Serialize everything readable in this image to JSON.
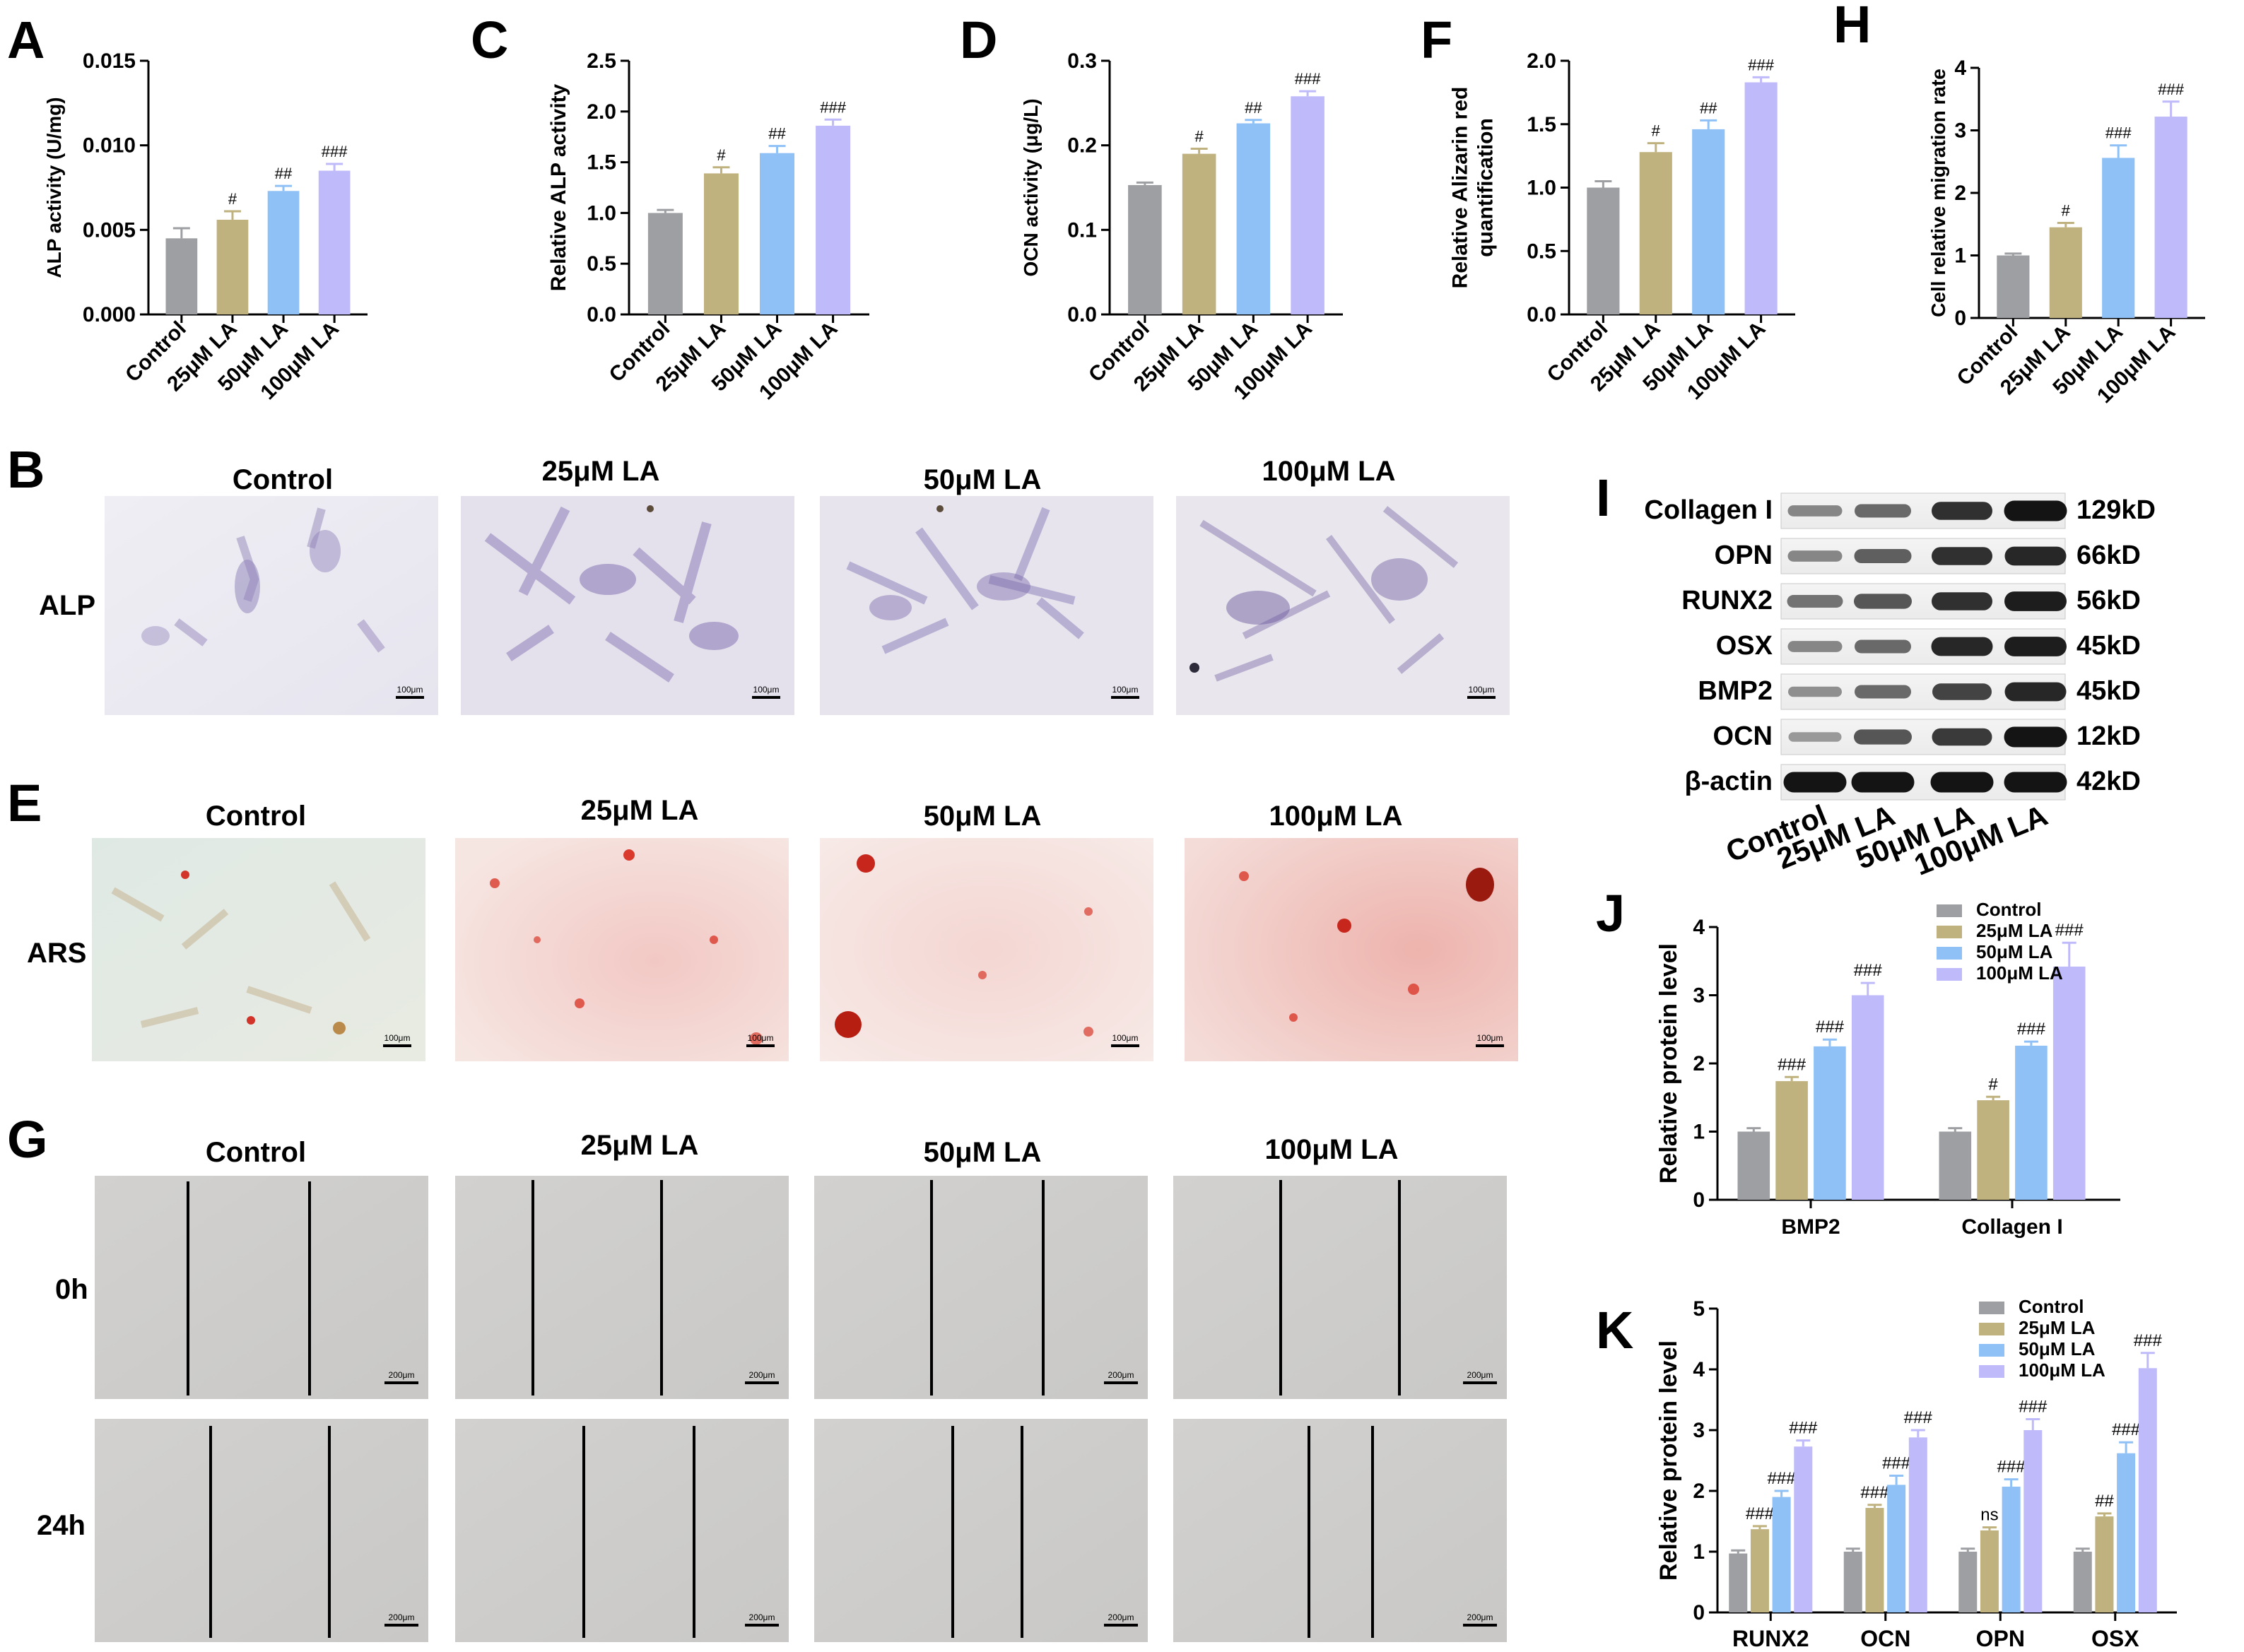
{
  "colors": [
    "#9e9fa3",
    "#bfb27e",
    "#8fc1f6",
    "#bfbafa"
  ],
  "panels": {
    "A": "A",
    "B": "B",
    "C": "C",
    "D": "D",
    "E": "E",
    "F": "F",
    "G": "G",
    "H": "H",
    "I": "I",
    "J": "J",
    "K": "K"
  },
  "chart_data": [
    {
      "id": "A",
      "type": "bar",
      "title": "",
      "ylabel": "ALP activity (U/mg)",
      "ylim": [
        0,
        0.015
      ],
      "yticks": [
        "0.000",
        "0.005",
        "0.010",
        "0.015"
      ],
      "categories": [
        "Control",
        "25μM LA",
        "50μM LA",
        "100μM LA"
      ],
      "values": [
        0.0045,
        0.0056,
        0.0073,
        0.0085
      ],
      "errors": [
        0.0006,
        0.0005,
        0.0003,
        0.0004
      ],
      "annotations": [
        "",
        "#",
        "##",
        "###"
      ]
    },
    {
      "id": "C",
      "type": "bar",
      "title": "",
      "ylabel": "Relative ALP activity",
      "ylim": [
        0,
        2.5
      ],
      "yticks": [
        "0.0",
        "0.5",
        "1.0",
        "1.5",
        "2.0",
        "2.5"
      ],
      "categories": [
        "Control",
        "25μM LA",
        "50μM LA",
        "100μM LA"
      ],
      "values": [
        1.0,
        1.39,
        1.59,
        1.86
      ],
      "errors": [
        0.03,
        0.06,
        0.07,
        0.06
      ],
      "annotations": [
        "",
        "#",
        "##",
        "###"
      ]
    },
    {
      "id": "D",
      "type": "bar",
      "title": "",
      "ylabel": "OCN activity (μg/L)",
      "ylim": [
        0,
        0.3
      ],
      "yticks": [
        "0.0",
        "0.1",
        "0.2",
        "0.3"
      ],
      "categories": [
        "Control",
        "25μM LA",
        "50μM LA",
        "100μM LA"
      ],
      "values": [
        0.153,
        0.19,
        0.226,
        0.258
      ],
      "errors": [
        0.003,
        0.006,
        0.004,
        0.006
      ],
      "annotations": [
        "",
        "#",
        "##",
        "###"
      ]
    },
    {
      "id": "F",
      "type": "bar",
      "title": "",
      "ylabel": "Relative Alizarin red\nquantification",
      "ylim": [
        0,
        2.0
      ],
      "yticks": [
        "0.0",
        "0.5",
        "1.0",
        "1.5",
        "2.0"
      ],
      "categories": [
        "Control",
        "25μM LA",
        "50μM LA",
        "100μM LA"
      ],
      "values": [
        1.0,
        1.28,
        1.46,
        1.83
      ],
      "errors": [
        0.05,
        0.07,
        0.07,
        0.04
      ],
      "annotations": [
        "",
        "#",
        "##",
        "###"
      ]
    },
    {
      "id": "H",
      "type": "bar",
      "title": "",
      "ylabel": "Cell relative migration rate",
      "ylim": [
        0,
        4
      ],
      "yticks": [
        "0",
        "1",
        "2",
        "3",
        "4"
      ],
      "categories": [
        "Control",
        "25μM LA",
        "50μM LA",
        "100μM LA"
      ],
      "values": [
        1.0,
        1.45,
        2.56,
        3.22
      ],
      "errors": [
        0.03,
        0.07,
        0.2,
        0.24
      ],
      "annotations": [
        "",
        "#",
        "###",
        "###"
      ]
    },
    {
      "id": "J",
      "type": "bar",
      "title": "",
      "ylabel": "Relative protein level",
      "ylim": [
        0,
        4
      ],
      "yticks": [
        "0",
        "1",
        "2",
        "3",
        "4"
      ],
      "categories": [
        "BMP2",
        "Collagen I"
      ],
      "legend": [
        "Control",
        "25μM LA",
        "50μM LA",
        "100μM LA"
      ],
      "series": [
        {
          "name": "Control",
          "values": [
            1.0,
            1.0
          ],
          "errors": [
            0.05,
            0.05
          ],
          "annotations": [
            "",
            ""
          ]
        },
        {
          "name": "25μM LA",
          "values": [
            1.74,
            1.46
          ],
          "errors": [
            0.06,
            0.05
          ],
          "annotations": [
            "###",
            "#"
          ]
        },
        {
          "name": "50μM LA",
          "values": [
            2.25,
            2.26
          ],
          "errors": [
            0.1,
            0.06
          ],
          "annotations": [
            "###",
            "###"
          ]
        },
        {
          "name": "100μM LA",
          "values": [
            3.0,
            3.42
          ],
          "errors": [
            0.18,
            0.35
          ],
          "annotations": [
            "###",
            "###"
          ]
        }
      ]
    },
    {
      "id": "K",
      "type": "bar",
      "title": "",
      "ylabel": "Relative protein level",
      "ylim": [
        0,
        5
      ],
      "yticks": [
        "0",
        "1",
        "2",
        "3",
        "4",
        "5"
      ],
      "categories": [
        "RUNX2",
        "OCN",
        "OPN",
        "OSX"
      ],
      "legend": [
        "Control",
        "25μM LA",
        "50μM LA",
        "100μM LA"
      ],
      "series": [
        {
          "name": "Control",
          "values": [
            0.97,
            1.0,
            1.0,
            1.0
          ],
          "errors": [
            0.05,
            0.05,
            0.05,
            0.05
          ],
          "annotations": [
            "",
            "",
            "",
            ""
          ]
        },
        {
          "name": "25μM LA",
          "values": [
            1.37,
            1.72,
            1.35,
            1.58
          ],
          "errors": [
            0.05,
            0.05,
            0.05,
            0.05
          ],
          "annotations": [
            "###",
            "###",
            "ns",
            "##"
          ]
        },
        {
          "name": "50μM LA",
          "values": [
            1.9,
            2.1,
            2.07,
            2.62
          ],
          "errors": [
            0.1,
            0.15,
            0.12,
            0.18
          ],
          "annotations": [
            "###",
            "###",
            "###",
            "###"
          ]
        },
        {
          "name": "100μM LA",
          "values": [
            2.73,
            2.88,
            3.0,
            4.02
          ],
          "errors": [
            0.1,
            0.12,
            0.18,
            0.25
          ],
          "annotations": [
            "###",
            "###",
            "###",
            "###"
          ]
        }
      ]
    }
  ],
  "images": {
    "groups": [
      "Control",
      "25μM LA",
      "50μM LA",
      "100μM LA"
    ],
    "alp_row": "ALP",
    "ars_row": "ARS",
    "wound_rows": [
      "0h",
      "24h"
    ],
    "scale_100": "100μm",
    "scale_200": "200μm"
  },
  "western": {
    "proteins": [
      {
        "name": "Collagen I",
        "size": "129kD"
      },
      {
        "name": "OPN",
        "size": "66kD"
      },
      {
        "name": "RUNX2",
        "size": "56kD"
      },
      {
        "name": "OSX",
        "size": "45kD"
      },
      {
        "name": "BMP2",
        "size": "45kD"
      },
      {
        "name": "OCN",
        "size": "12kD"
      },
      {
        "name": "β-actin",
        "size": "42kD"
      }
    ],
    "band_intensity": [
      [
        0.35,
        0.5,
        0.8,
        0.95
      ],
      [
        0.35,
        0.55,
        0.8,
        0.85
      ],
      [
        0.45,
        0.6,
        0.8,
        0.9
      ],
      [
        0.35,
        0.5,
        0.85,
        0.9
      ],
      [
        0.3,
        0.5,
        0.7,
        0.85
      ],
      [
        0.25,
        0.6,
        0.75,
        0.95
      ],
      [
        0.95,
        0.95,
        0.95,
        0.95
      ]
    ],
    "lanes": [
      "Control",
      "25μM LA",
      "50μM LA",
      "100μM LA"
    ]
  }
}
